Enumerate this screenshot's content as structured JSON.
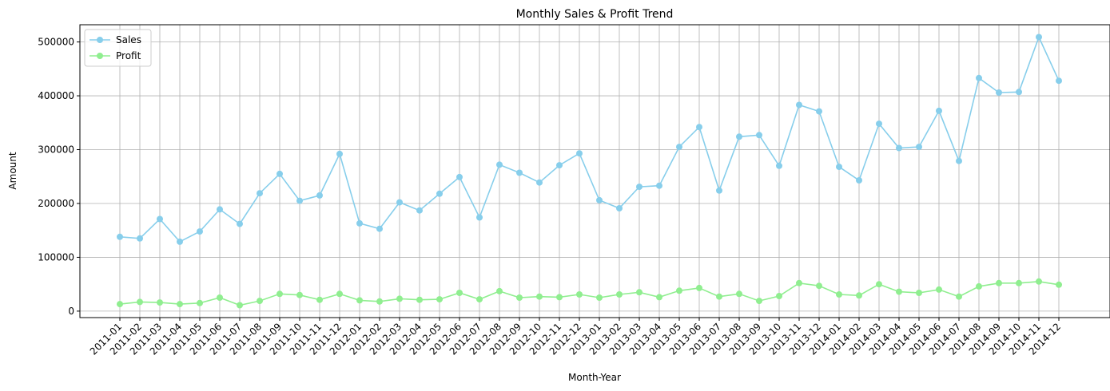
{
  "chart_data": {
    "type": "line",
    "title": "Monthly Sales & Profit Trend",
    "xlabel": "Month-Year",
    "ylabel": "Amount",
    "ylim": [
      -12000,
      532000
    ],
    "yticks": [
      0,
      100000,
      200000,
      300000,
      400000,
      500000
    ],
    "ytick_labels": [
      "0",
      "100000",
      "200000",
      "300000",
      "400000",
      "500000"
    ],
    "grid": true,
    "legend": "top-left",
    "categories": [
      "2011-01",
      "2011-02",
      "2011-03",
      "2011-04",
      "2011-05",
      "2011-06",
      "2011-07",
      "2011-08",
      "2011-09",
      "2011-10",
      "2011-11",
      "2011-12",
      "2012-01",
      "2012-02",
      "2012-03",
      "2012-04",
      "2012-05",
      "2012-06",
      "2012-07",
      "2012-08",
      "2012-09",
      "2012-10",
      "2012-11",
      "2012-12",
      "2013-01",
      "2013-02",
      "2013-03",
      "2013-04",
      "2013-05",
      "2013-06",
      "2013-07",
      "2013-08",
      "2013-09",
      "2013-10",
      "2013-11",
      "2013-12",
      "2014-01",
      "2014-02",
      "2014-03",
      "2014-04",
      "2014-05",
      "2014-06",
      "2014-07",
      "2014-08",
      "2014-09",
      "2014-10",
      "2014-11",
      "2014-12"
    ],
    "series": [
      {
        "name": "Sales",
        "color": "#87ceeb",
        "values": [
          138000,
          135000,
          171000,
          129000,
          148000,
          189000,
          162000,
          219000,
          255000,
          205000,
          215000,
          292000,
          163000,
          153000,
          202000,
          187000,
          218000,
          249000,
          174000,
          272000,
          257000,
          239000,
          271000,
          293000,
          206000,
          191000,
          231000,
          233000,
          305000,
          342000,
          224000,
          324000,
          327000,
          270000,
          383000,
          371000,
          268000,
          243000,
          348000,
          303000,
          305000,
          372000,
          279000,
          433000,
          406000,
          407000,
          509000,
          428000
        ]
      },
      {
        "name": "Profit",
        "color": "#90ee90",
        "values": [
          13000,
          17000,
          16000,
          13000,
          15000,
          25000,
          11000,
          19000,
          32000,
          30000,
          21000,
          32000,
          20000,
          18000,
          23000,
          21000,
          22000,
          34000,
          22000,
          37000,
          25000,
          27000,
          26000,
          31000,
          25000,
          31000,
          35000,
          26000,
          38000,
          43000,
          27000,
          32000,
          19000,
          28000,
          52000,
          47000,
          31000,
          29000,
          50000,
          36000,
          34000,
          40000,
          27000,
          46000,
          52000,
          52000,
          55000,
          49000
        ]
      }
    ]
  }
}
